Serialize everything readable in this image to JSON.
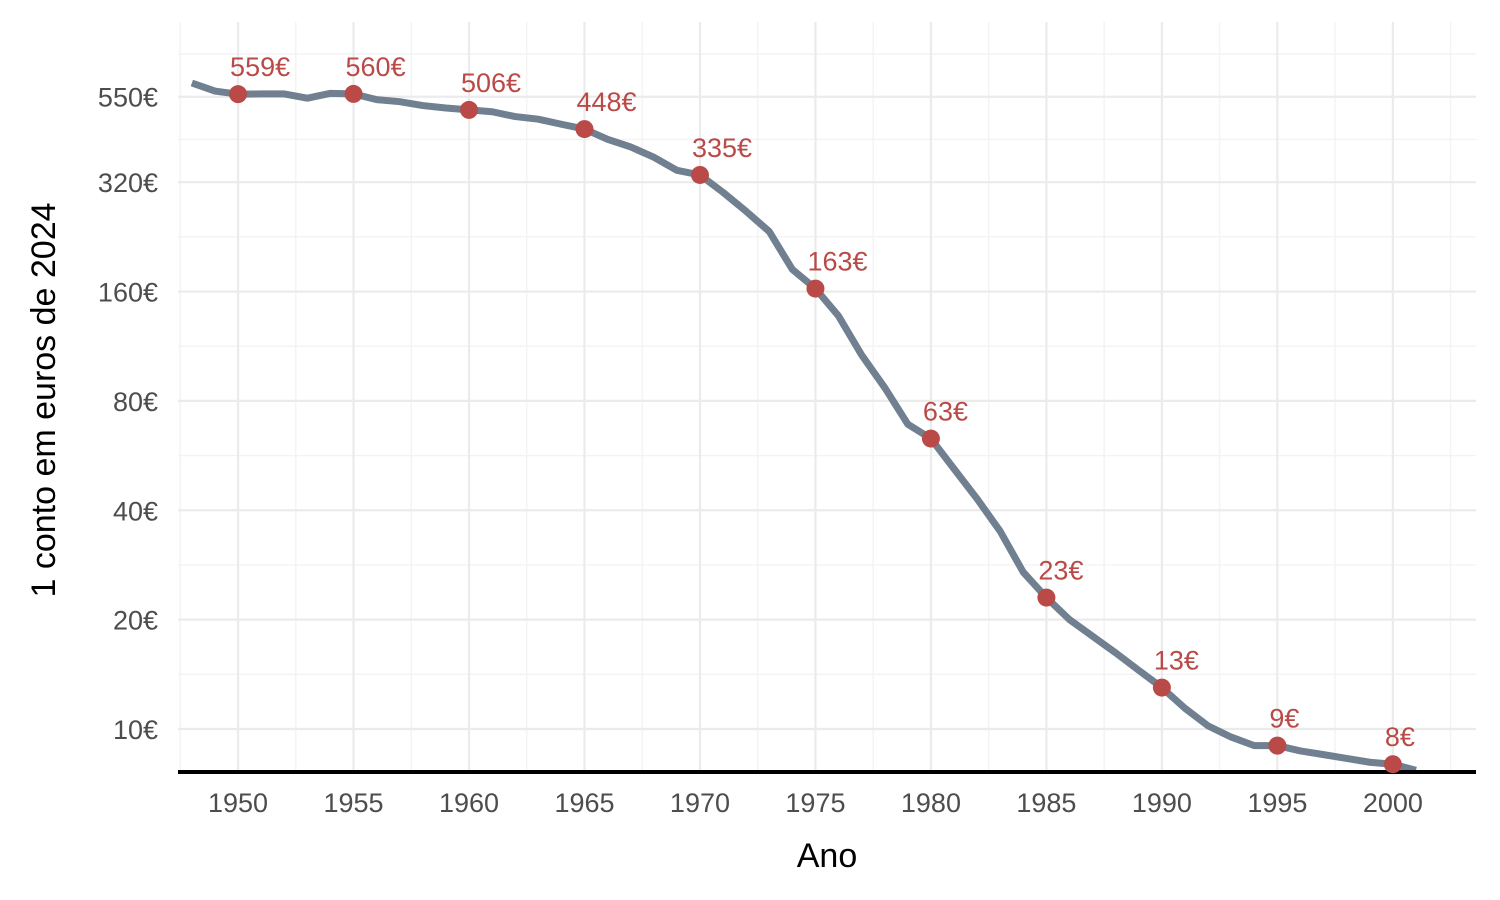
{
  "chart_data": {
    "type": "line",
    "xlabel": "Ano",
    "ylabel": "1 conto em euros de 2024",
    "y_scale": "log",
    "xlim": [
      1947.4,
      2003.6
    ],
    "x_ticks": [
      1950,
      1955,
      1960,
      1965,
      1970,
      1975,
      1980,
      1985,
      1990,
      1995,
      2000
    ],
    "y_ticks": [
      {
        "value": 10,
        "label": "10€"
      },
      {
        "value": 20,
        "label": "20€"
      },
      {
        "value": 40,
        "label": "40€"
      },
      {
        "value": 80,
        "label": "80€"
      },
      {
        "value": 160,
        "label": "160€"
      },
      {
        "value": 320,
        "label": "320€"
      },
      {
        "value": 550,
        "label": "550€"
      }
    ],
    "grid": true,
    "baseline": "black line at bottom",
    "colors": {
      "line": "#708090",
      "points": "#b94a48",
      "labels": "#b94a48"
    },
    "series": [
      {
        "x": [
          1948,
          1949,
          1950,
          1951,
          1952,
          1953,
          1954,
          1955,
          1956,
          1957,
          1958,
          1959,
          1960,
          1961,
          1962,
          1963,
          1964,
          1965,
          1966,
          1967,
          1968,
          1969,
          1970,
          1971,
          1972,
          1973,
          1974,
          1975,
          1976,
          1977,
          1978,
          1979,
          1980,
          1981,
          1982,
          1983,
          1984,
          1985,
          1986,
          1987,
          1988,
          1989,
          1990,
          1991,
          1992,
          1993,
          1994,
          1995,
          1996,
          1997,
          1998,
          1999,
          2000,
          2001
        ],
        "y": [
          600,
          570,
          559,
          560,
          560,
          545,
          562,
          560,
          540,
          533,
          520,
          512,
          506,
          500,
          485,
          477,
          462,
          448,
          420,
          400,
          375,
          345,
          335,
          300,
          266,
          234,
          184,
          163,
          137,
          107,
          87,
          69,
          63,
          52,
          43,
          35,
          27,
          23,
          20,
          18,
          16.2,
          14.5,
          13,
          11.4,
          10.2,
          9.5,
          9.0,
          9,
          8.7,
          8.5,
          8.3,
          8.1,
          8,
          7.7
        ]
      }
    ],
    "highlighted_points": [
      {
        "x": 1950,
        "y": 559,
        "label": "559€"
      },
      {
        "x": 1955,
        "y": 560,
        "label": "560€"
      },
      {
        "x": 1960,
        "y": 506,
        "label": "506€"
      },
      {
        "x": 1965,
        "y": 448,
        "label": "448€"
      },
      {
        "x": 1970,
        "y": 335,
        "label": "335€"
      },
      {
        "x": 1975,
        "y": 163,
        "label": "163€"
      },
      {
        "x": 1980,
        "y": 63,
        "label": "63€"
      },
      {
        "x": 1985,
        "y": 23,
        "label": "23€"
      },
      {
        "x": 1990,
        "y": 13,
        "label": "13€"
      },
      {
        "x": 1995,
        "y": 9,
        "label": "9€"
      },
      {
        "x": 2000,
        "y": 8,
        "label": "8€"
      }
    ]
  }
}
